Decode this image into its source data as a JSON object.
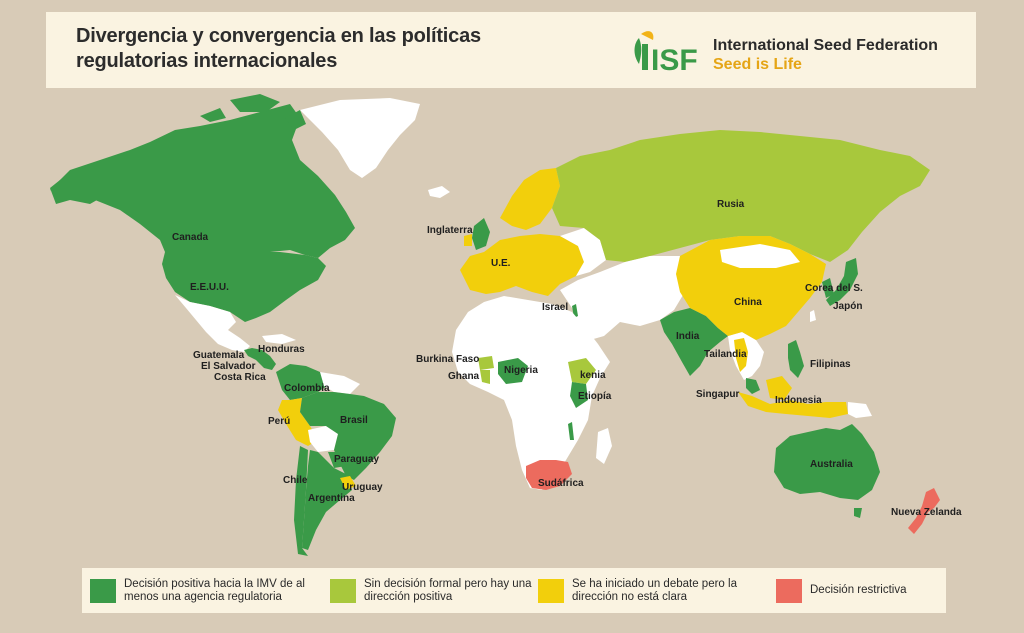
{
  "header": {
    "title_line1": "Divergencia y convergencia en las políticas",
    "title_line2": "regulatorias internacionales",
    "logo_text": "ISF",
    "org_name": "International Seed Federation",
    "tagline": "Seed is Life"
  },
  "colors": {
    "positive": "#3a9a48",
    "informal": "#a8c83c",
    "debate": "#f2cf0c",
    "restrictive": "#ec6b5e",
    "none": "#ffffff",
    "background": "#d8cbb7"
  },
  "legend": [
    {
      "category": "positive",
      "label": "Decisión positiva hacia la IMV de al menos una agencia regulatoria"
    },
    {
      "category": "informal",
      "label": "Sin decisión formal pero hay una dirección positiva"
    },
    {
      "category": "debate",
      "label": "Se ha iniciado un debate pero la dirección no está clara"
    },
    {
      "category": "restrictive",
      "label": "Decisión restrictiva"
    }
  ],
  "countries": {
    "canada": {
      "label": "Canada",
      "category": "positive"
    },
    "usa": {
      "label": "E.E.U.U.",
      "category": "positive"
    },
    "honduras": {
      "label": "Honduras",
      "category": "positive"
    },
    "guatemala": {
      "label": "Guatemala",
      "category": "positive"
    },
    "el_salvador": {
      "label": "El Salvador",
      "category": "positive"
    },
    "costa_rica": {
      "label": "Costa Rica",
      "category": "positive"
    },
    "colombia": {
      "label": "Colombia",
      "category": "positive"
    },
    "peru": {
      "label": "Perú",
      "category": "debate"
    },
    "brasil": {
      "label": "Brasil",
      "category": "positive"
    },
    "paraguay": {
      "label": "Paraguay",
      "category": "positive"
    },
    "chile": {
      "label": "Chile",
      "category": "positive"
    },
    "uruguay": {
      "label": "Uruguay",
      "category": "debate"
    },
    "argentina": {
      "label": "Argentina",
      "category": "positive"
    },
    "inglaterra": {
      "label": "Inglaterra",
      "category": "positive"
    },
    "ue": {
      "label": "U.E.",
      "category": "debate"
    },
    "israel": {
      "label": "Israel",
      "category": "positive"
    },
    "burkina_faso": {
      "label": "Burkina Faso",
      "category": "informal"
    },
    "ghana": {
      "label": "Ghana",
      "category": "informal"
    },
    "nigeria": {
      "label": "Nigeria",
      "category": "positive"
    },
    "kenia": {
      "label": "kenia",
      "category": "informal"
    },
    "etiopia": {
      "label": "Etiopía",
      "category": "positive"
    },
    "sudafrica": {
      "label": "Sudáfrica",
      "category": "restrictive"
    },
    "rusia": {
      "label": "Rusia",
      "category": "informal"
    },
    "china": {
      "label": "China",
      "category": "debate"
    },
    "corea": {
      "label": "Corea del S.",
      "category": "positive"
    },
    "japon": {
      "label": "Japón",
      "category": "positive"
    },
    "india": {
      "label": "India",
      "category": "positive"
    },
    "tailandia": {
      "label": "Tailandia",
      "category": "debate"
    },
    "filipinas": {
      "label": "Filipinas",
      "category": "positive"
    },
    "singapur": {
      "label": "Singapur",
      "category": "debate"
    },
    "indonesia": {
      "label": "Indonesia",
      "category": "debate"
    },
    "australia": {
      "label": "Australia",
      "category": "positive"
    },
    "nueva_zelanda": {
      "label": "Nueva Zelanda",
      "category": "restrictive"
    }
  }
}
